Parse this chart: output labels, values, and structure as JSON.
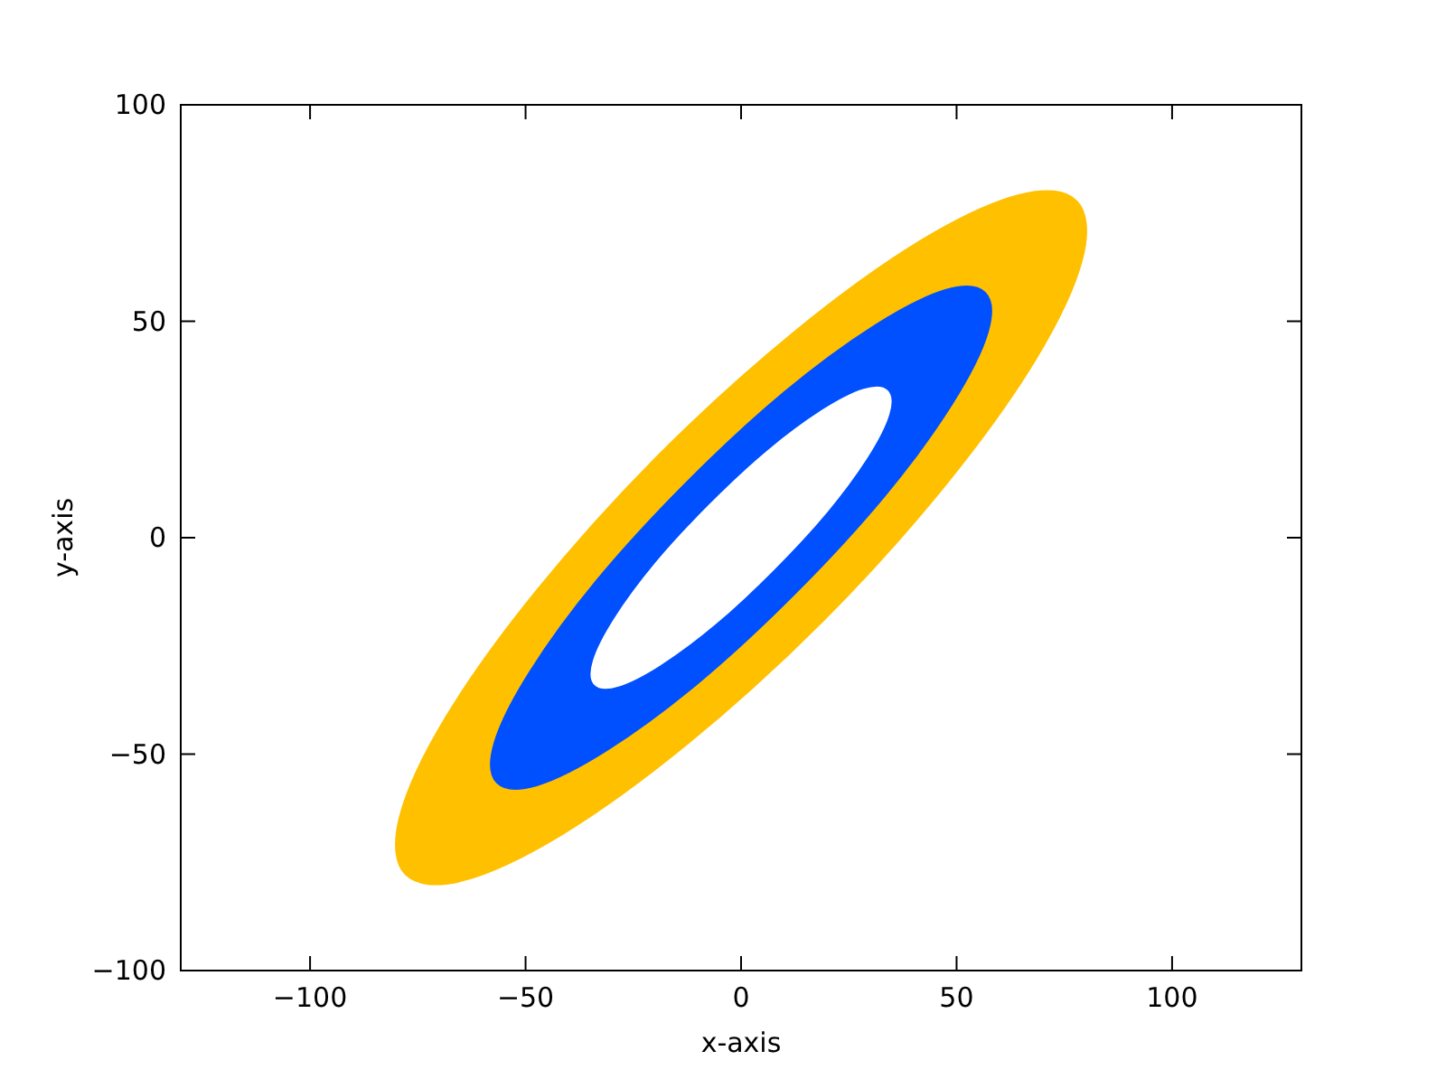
{
  "chart_data": {
    "type": "area",
    "xlabel": "x-axis",
    "ylabel": "y-axis",
    "xlim": [
      -130,
      130
    ],
    "ylim": [
      -100,
      100
    ],
    "xticks": [
      -100,
      -50,
      0,
      50,
      100
    ],
    "yticks": [
      -100,
      -50,
      0,
      50,
      100
    ],
    "grid": false,
    "series": [
      {
        "color": "#ffc000",
        "x": [
          77.8,
          64.6,
          41.5,
          12.2,
          -19.1,
          -47.4,
          -68.5,
          -79.2,
          -77.8,
          -64.6,
          -41.5,
          -12.2,
          19.1,
          47.4,
          68.5,
          79.2
        ],
        "values": [
          77.8,
          79.2,
          68.5,
          47.4,
          19.1,
          -12.2,
          -41.5,
          -64.6,
          -77.8,
          -79.2,
          -68.5,
          -47.4,
          -19.1,
          12.2,
          41.5,
          64.6
        ]
      },
      {
        "color": "#0050ff",
        "x": [
          56.6,
          47.4,
          31.0,
          9.9,
          -12.7,
          -33.5,
          -49.0,
          -57.2,
          -56.6,
          -47.4,
          -31.0,
          -9.9,
          12.7,
          33.5,
          49.0,
          57.2
        ],
        "values": [
          56.6,
          57.2,
          49.0,
          33.5,
          12.7,
          -9.9,
          -31.0,
          -47.4,
          -56.6,
          -57.2,
          -49.0,
          -33.5,
          -12.7,
          9.9,
          31.0,
          47.4
        ]
      },
      {
        "color": "#ffffff",
        "x": [
          33.9,
          28.5,
          18.8,
          6.1,
          -7.4,
          -19.9,
          -29.3,
          -34.2,
          -33.9,
          -28.5,
          -18.8,
          -6.1,
          7.4,
          19.9,
          29.3,
          34.2
        ],
        "values": [
          33.9,
          34.2,
          29.3,
          19.9,
          7.4,
          -6.1,
          -18.8,
          -28.5,
          -33.9,
          -34.2,
          -29.3,
          -19.9,
          -7.4,
          6.1,
          18.8,
          28.5
        ]
      }
    ]
  }
}
